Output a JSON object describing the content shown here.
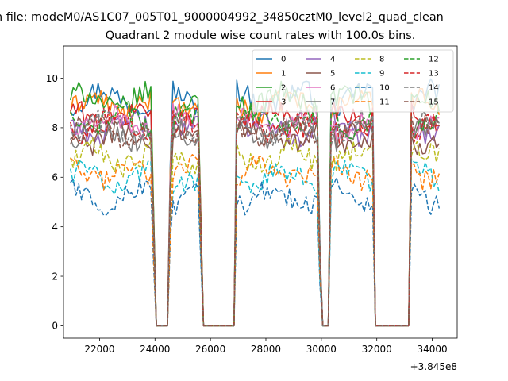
{
  "chart_data": {
    "type": "line",
    "suptitle": "n file: modeM0/AS1C07_005T01_9000004992_34850cztM0_level2_quad_clean",
    "title": "Quadrant 2 module wise count rates with 100.0s bins.",
    "xlabel": "",
    "ylabel": "",
    "x_offset_label": "+3.845e8",
    "xlim": [
      20700,
      34900
    ],
    "ylim": [
      -0.5,
      11.3
    ],
    "xticks": [
      22000,
      24000,
      26000,
      28000,
      30000,
      32000,
      34000
    ],
    "yticks": [
      0,
      2,
      4,
      6,
      8,
      10
    ],
    "legend_position": "top-right",
    "x": {
      "start": 20950,
      "end": 34250,
      "step": 100
    },
    "profile": "Every series is flat near its base level during the active intervals [20950-23850], [24600-25550], [26950-29850], [30350-31850], [33250-34250] and drops to 0 during [24050-24450], [25750-26850], [30000-30250], [31950-33150]; transitions are linear ramps of about 200 s.",
    "series": [
      {
        "name": "0",
        "color": "#1f77b4",
        "dash": "solid",
        "level": 9.2
      },
      {
        "name": "1",
        "color": "#ff7f0e",
        "dash": "solid",
        "level": 8.9
      },
      {
        "name": "2",
        "color": "#2ca02c",
        "dash": "solid",
        "level": 9.1
      },
      {
        "name": "3",
        "color": "#d62728",
        "dash": "solid",
        "level": 8.4
      },
      {
        "name": "4",
        "color": "#9467bd",
        "dash": "solid",
        "level": 8.0
      },
      {
        "name": "5",
        "color": "#8c564b",
        "dash": "solid",
        "level": 7.6
      },
      {
        "name": "6",
        "color": "#e377c2",
        "dash": "solid",
        "level": 8.2
      },
      {
        "name": "7",
        "color": "#7f7f7f",
        "dash": "solid",
        "level": 7.8
      },
      {
        "name": "8",
        "color": "#bcbd22",
        "dash": "dashed",
        "level": 6.8
      },
      {
        "name": "9",
        "color": "#17becf",
        "dash": "dashed",
        "level": 6.0
      },
      {
        "name": "10",
        "color": "#1f77b4",
        "dash": "dashed",
        "level": 5.2
      },
      {
        "name": "11",
        "color": "#ff7f0e",
        "dash": "dashed",
        "level": 6.2
      },
      {
        "name": "12",
        "color": "#2ca02c",
        "dash": "dashed",
        "level": 8.3
      },
      {
        "name": "13",
        "color": "#d62728",
        "dash": "dashed",
        "level": 8.1
      },
      {
        "name": "14",
        "color": "#7f7f7f",
        "dash": "dashed",
        "level": 8.0
      },
      {
        "name": "15",
        "color": "#8c564b",
        "dash": "dashed",
        "level": 7.9
      }
    ]
  }
}
